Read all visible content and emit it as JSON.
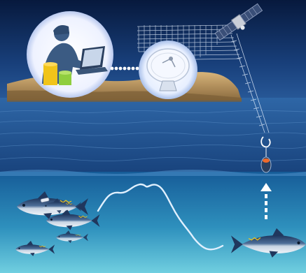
{
  "scene": {
    "description_visible_text": "",
    "colors": {
      "sky_top": "#0a1f4a",
      "sky_mid": "#1f4d8e",
      "sea_surface": "#2f6fb0",
      "underwater_top": "#1c6aa7",
      "underwater_bottom": "#5fc2d8",
      "moon": "#f4f6ff",
      "silhouette": "#3b5b83",
      "chart_yellow": "#f0c419",
      "chart_green": "#8fce3f",
      "hill": "#c8a060",
      "signal": "#e8f2ff",
      "tuna_back": "#233f68",
      "tuna_belly": "#d9e3ee",
      "tag_line": "#dfeefc"
    },
    "icons": [
      "researcher-silhouette-icon",
      "laptop-icon",
      "satellite-dish-icon",
      "satellite-icon",
      "popup-tag-icon",
      "tuna-fish-icon"
    ]
  }
}
